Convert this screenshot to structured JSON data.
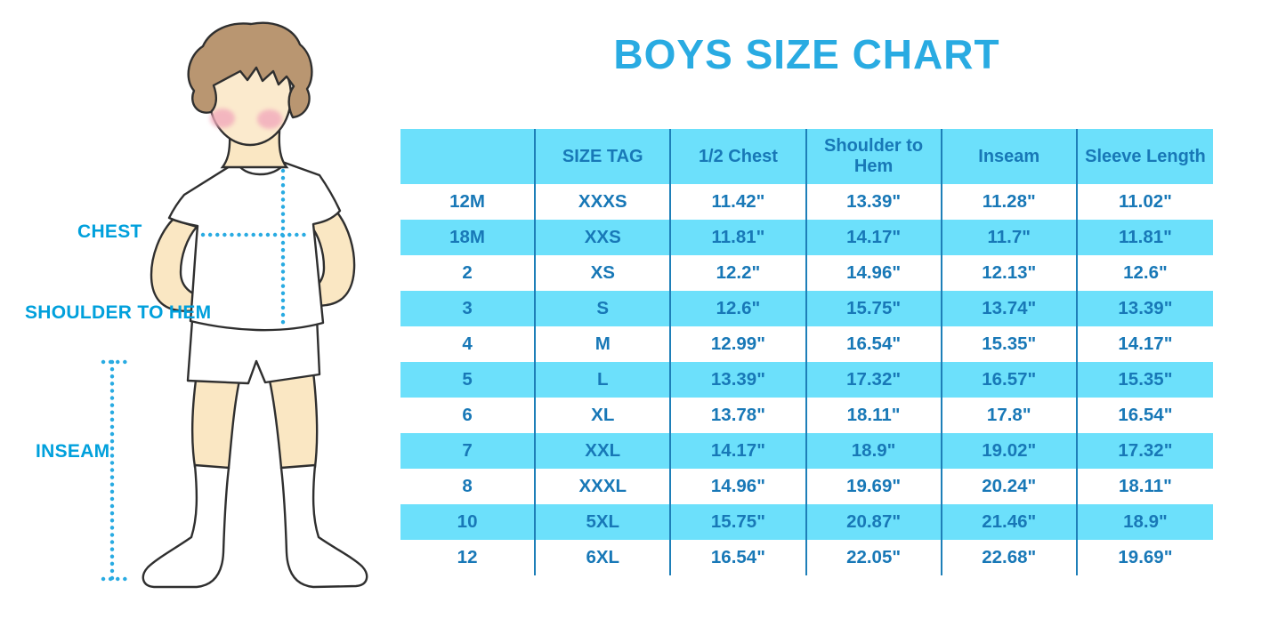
{
  "title": "BOYS SIZE CHART",
  "diagram": {
    "labels": {
      "chest": "CHEST",
      "shoulder_to_hem": "SHOULDER TO HEM",
      "inseam": "INSEAM"
    },
    "measurement_lines": [
      "chest",
      "shoulder-to-hem",
      "inseam"
    ]
  },
  "colors": {
    "title_blue": "#29ABE2",
    "table_text_blue": "#1878B7",
    "stripe_light_blue": "#6CE0FB",
    "divider_blue": "#1E7FB8",
    "label_blue": "#00A0DC",
    "dotted_line_blue": "#29ABE2",
    "skin": "#FAE7C3",
    "hair_brown": "#B99671",
    "blush_pink": "#F2AABC"
  },
  "chart_data": {
    "type": "table",
    "title": "BOYS SIZE CHART",
    "columns": [
      "",
      "SIZE TAG",
      "1/2 Chest",
      "Shoulder to Hem",
      "Inseam",
      "Sleeve Length"
    ],
    "rows": [
      [
        "12M",
        "XXXS",
        "11.42\"",
        "13.39\"",
        "11.28\"",
        "11.02\""
      ],
      [
        "18M",
        "XXS",
        "11.81\"",
        "14.17\"",
        "11.7\"",
        "11.81\""
      ],
      [
        "2",
        "XS",
        "12.2\"",
        "14.96\"",
        "12.13\"",
        "12.6\""
      ],
      [
        "3",
        "S",
        "12.6\"",
        "15.75\"",
        "13.74\"",
        "13.39\""
      ],
      [
        "4",
        "M",
        "12.99\"",
        "16.54\"",
        "15.35\"",
        "14.17\""
      ],
      [
        "5",
        "L",
        "13.39\"",
        "17.32\"",
        "16.57\"",
        "15.35\""
      ],
      [
        "6",
        "XL",
        "13.78\"",
        "18.11\"",
        "17.8\"",
        "16.54\""
      ],
      [
        "7",
        "XXL",
        "14.17\"",
        "18.9\"",
        "19.02\"",
        "17.32\""
      ],
      [
        "8",
        "XXXL",
        "14.96\"",
        "19.69\"",
        "20.24\"",
        "18.11\""
      ],
      [
        "10",
        "5XL",
        "15.75\"",
        "20.87\"",
        "21.46\"",
        "18.9\""
      ],
      [
        "12",
        "6XL",
        "16.54\"",
        "22.05\"",
        "22.68\"",
        "19.69\""
      ]
    ],
    "layout": {
      "striping": "header and alternate rows light blue, others white",
      "grid": "vertical dividers between columns only"
    }
  }
}
